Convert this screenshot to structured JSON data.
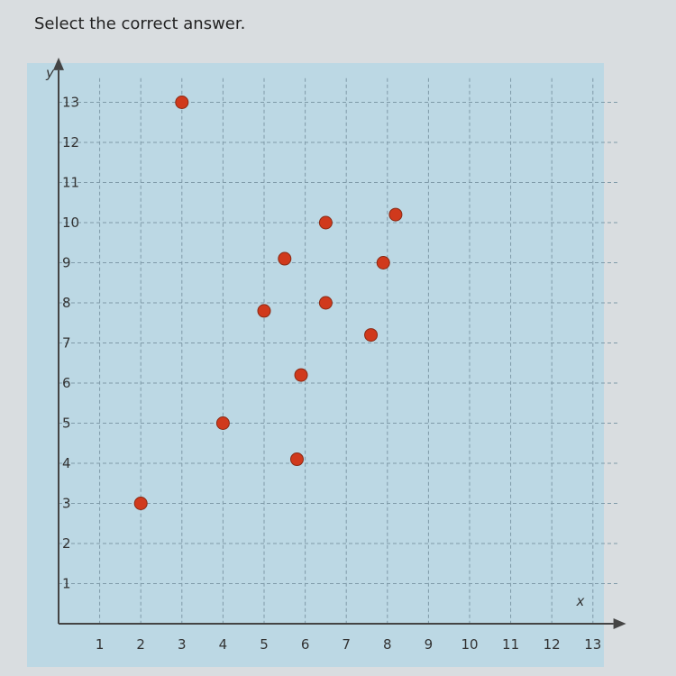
{
  "prompt": "Select the correct answer.",
  "chart_data": {
    "type": "scatter",
    "title": "",
    "xlabel": "x",
    "ylabel": "y",
    "xlim": [
      0,
      13
    ],
    "ylim": [
      0,
      13
    ],
    "grid": true,
    "x_ticks": [
      1,
      2,
      3,
      4,
      5,
      6,
      7,
      8,
      9,
      10,
      11,
      12,
      13
    ],
    "y_ticks": [
      1,
      2,
      3,
      4,
      5,
      6,
      7,
      8,
      9,
      10,
      11,
      12,
      13
    ],
    "point_color": "#d0391c",
    "points": [
      {
        "x": 2,
        "y": 3
      },
      {
        "x": 3,
        "y": 13
      },
      {
        "x": 4,
        "y": 5
      },
      {
        "x": 5.0,
        "y": 7.8
      },
      {
        "x": 5.5,
        "y": 9.1
      },
      {
        "x": 5.8,
        "y": 4.1
      },
      {
        "x": 5.9,
        "y": 6.2
      },
      {
        "x": 6.5,
        "y": 10
      },
      {
        "x": 6.5,
        "y": 8
      },
      {
        "x": 7.6,
        "y": 7.2
      },
      {
        "x": 7.9,
        "y": 9
      },
      {
        "x": 8.2,
        "y": 10.2
      }
    ]
  }
}
